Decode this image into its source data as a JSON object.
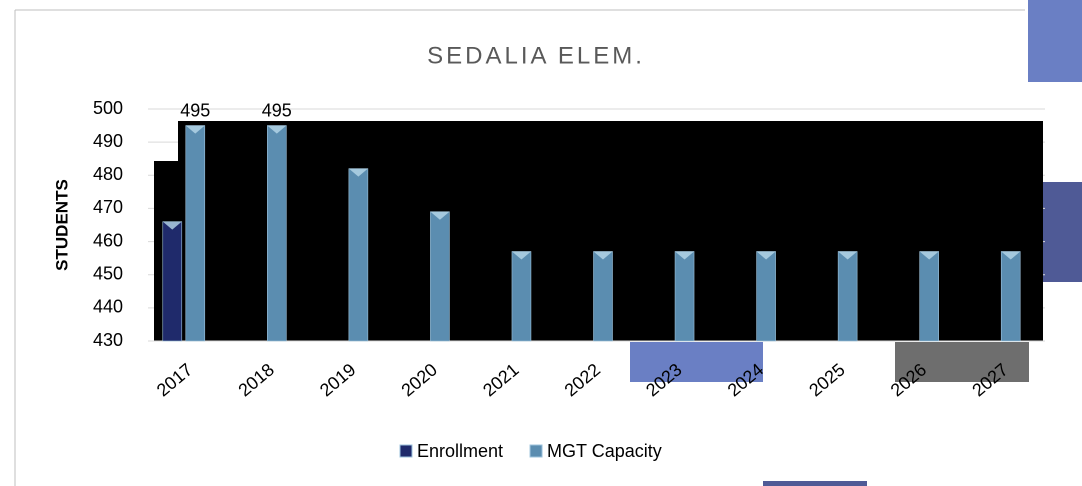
{
  "chart_data": {
    "type": "bar",
    "title": "SEDALIA ELEM.",
    "y_label": "STUDENTS",
    "categories": [
      "2017",
      "2018",
      "2019",
      "2020",
      "2021",
      "2022",
      "2023",
      "2024",
      "2025",
      "2026",
      "2027"
    ],
    "series": [
      {
        "name": "Enrollment",
        "color": "#1f2a6b",
        "values": [
          466,
          null,
          null,
          null,
          null,
          null,
          null,
          null,
          null,
          null,
          null
        ]
      },
      {
        "name": "MGT Capacity",
        "color": "#5b8db0",
        "values": [
          495,
          495,
          482,
          469,
          457,
          457,
          457,
          457,
          457,
          457,
          457
        ],
        "value_labels": [
          "495",
          "495",
          null,
          null,
          null,
          null,
          null,
          null,
          null,
          null,
          null
        ]
      }
    ],
    "ylim": [
      430,
      500
    ],
    "yticks": [
      430,
      440,
      450,
      460,
      470,
      480,
      490,
      500
    ],
    "grid": true,
    "legend": "bottom"
  }
}
